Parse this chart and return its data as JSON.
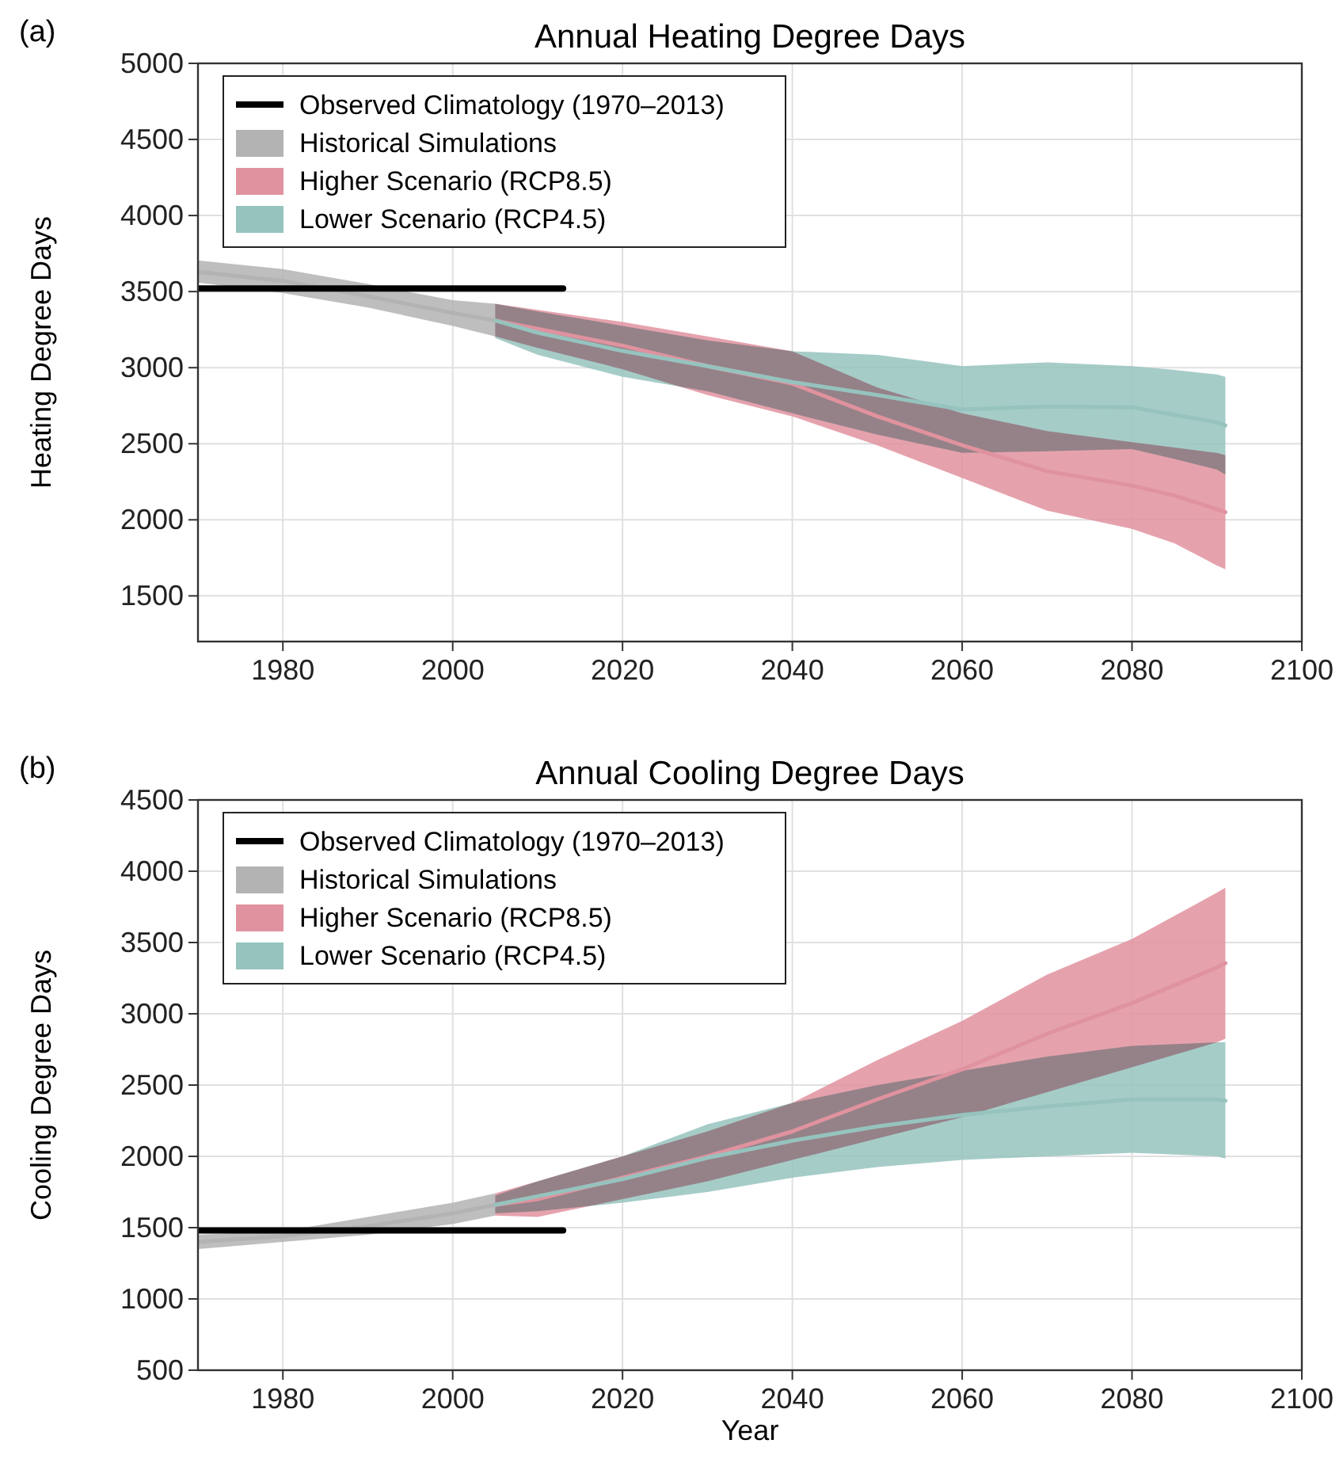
{
  "chart_data": [
    {
      "type": "line",
      "title": "Annual Heating Degree Days",
      "ylabel": "Heating Degree Days",
      "annotations": [
        "(a)"
      ],
      "xlim": [
        1970,
        2100
      ],
      "xticks": [
        1980,
        2000,
        2020,
        2040,
        2060,
        2080,
        2100
      ],
      "ylim": [
        1200,
        5000
      ],
      "yticks": [
        1500,
        2000,
        2500,
        3000,
        3500,
        4000,
        4500,
        5000
      ],
      "grid": true,
      "legend": "top left",
      "series": [
        {
          "name": "Observed Climatology (1970–2013)",
          "color": "#000000",
          "x": [
            1970,
            2013
          ],
          "values": [
            3520,
            3520
          ]
        },
        {
          "name": "Historical Simulations",
          "color": "#b3b3b3",
          "x": [
            1970,
            1980,
            1990,
            2000,
            2005
          ],
          "values": [
            3630,
            3570,
            3470,
            3360,
            3310
          ],
          "lower": [
            3560,
            3490,
            3395,
            3275,
            3205
          ],
          "upper": [
            3705,
            3648,
            3550,
            3443,
            3420
          ]
        },
        {
          "name": "Higher Scenario (RCP8.5)",
          "color": "#e0929f",
          "x": [
            2005,
            2010,
            2020,
            2030,
            2040,
            2050,
            2060,
            2070,
            2080,
            2085,
            2090,
            2091
          ],
          "values": [
            3310,
            3255,
            3145,
            3010,
            2895,
            2680,
            2490,
            2320,
            2225,
            2160,
            2070,
            2050
          ],
          "lower": [
            3205,
            3130,
            2990,
            2820,
            2680,
            2490,
            2275,
            2060,
            1940,
            1845,
            1700,
            1675
          ],
          "upper": [
            3420,
            3380,
            3300,
            3205,
            3108,
            2870,
            2700,
            2583,
            2510,
            2475,
            2440,
            2425
          ]
        },
        {
          "name": "Lower Scenario (RCP4.5)",
          "color": "#96c3be",
          "x": [
            2005,
            2010,
            2020,
            2030,
            2040,
            2050,
            2060,
            2070,
            2080,
            2085,
            2090,
            2091
          ],
          "values": [
            3310,
            3230,
            3110,
            3010,
            2905,
            2820,
            2725,
            2745,
            2740,
            2690,
            2640,
            2620
          ],
          "lower": [
            3195,
            3085,
            2940,
            2845,
            2700,
            2560,
            2440,
            2450,
            2465,
            2400,
            2330,
            2297
          ],
          "upper": [
            3420,
            3370,
            3275,
            3180,
            3108,
            3085,
            3010,
            3035,
            3010,
            2985,
            2955,
            2940
          ]
        }
      ]
    },
    {
      "type": "line",
      "title": "Annual Cooling Degree Days",
      "xlabel": "Year",
      "ylabel": "Cooling Degree Days",
      "annotations": [
        "(b)"
      ],
      "xlim": [
        1970,
        2100
      ],
      "xticks": [
        1980,
        2000,
        2020,
        2040,
        2060,
        2080,
        2100
      ],
      "ylim": [
        500,
        4500
      ],
      "yticks": [
        500,
        1000,
        1500,
        2000,
        2500,
        3000,
        3500,
        4000,
        4500
      ],
      "grid": true,
      "legend": "top left",
      "series": [
        {
          "name": "Observed Climatology (1970–2013)",
          "color": "#000000",
          "x": [
            1970,
            2013
          ],
          "values": [
            1480,
            1480
          ]
        },
        {
          "name": "Historical Simulations",
          "color": "#b3b3b3",
          "x": [
            1970,
            1980,
            1990,
            2000,
            2005
          ],
          "values": [
            1400,
            1440,
            1510,
            1600,
            1660
          ],
          "lower": [
            1350,
            1400,
            1450,
            1525,
            1585
          ],
          "upper": [
            1450,
            1475,
            1575,
            1675,
            1740
          ]
        },
        {
          "name": "Higher Scenario (RCP8.5)",
          "color": "#e0929f",
          "x": [
            2005,
            2010,
            2020,
            2030,
            2040,
            2050,
            2060,
            2070,
            2080,
            2090,
            2091
          ],
          "values": [
            1660,
            1700,
            1850,
            2000,
            2175,
            2400,
            2610,
            2860,
            3075,
            3325,
            3355
          ],
          "lower": [
            1585,
            1575,
            1700,
            1825,
            1975,
            2125,
            2275,
            2450,
            2625,
            2800,
            2825
          ],
          "upper": [
            1740,
            1825,
            2000,
            2175,
            2375,
            2675,
            2950,
            3275,
            3525,
            3850,
            3885
          ]
        },
        {
          "name": "Lower Scenario (RCP4.5)",
          "color": "#96c3be",
          "x": [
            2005,
            2010,
            2020,
            2030,
            2040,
            2050,
            2060,
            2070,
            2080,
            2090,
            2091
          ],
          "values": [
            1660,
            1720,
            1840,
            1990,
            2110,
            2210,
            2290,
            2350,
            2400,
            2400,
            2390
          ],
          "lower": [
            1600,
            1615,
            1675,
            1750,
            1850,
            1925,
            1975,
            2000,
            2025,
            2000,
            1985
          ],
          "upper": [
            1725,
            1825,
            2000,
            2225,
            2375,
            2500,
            2600,
            2700,
            2775,
            2800,
            2800
          ]
        }
      ]
    }
  ]
}
